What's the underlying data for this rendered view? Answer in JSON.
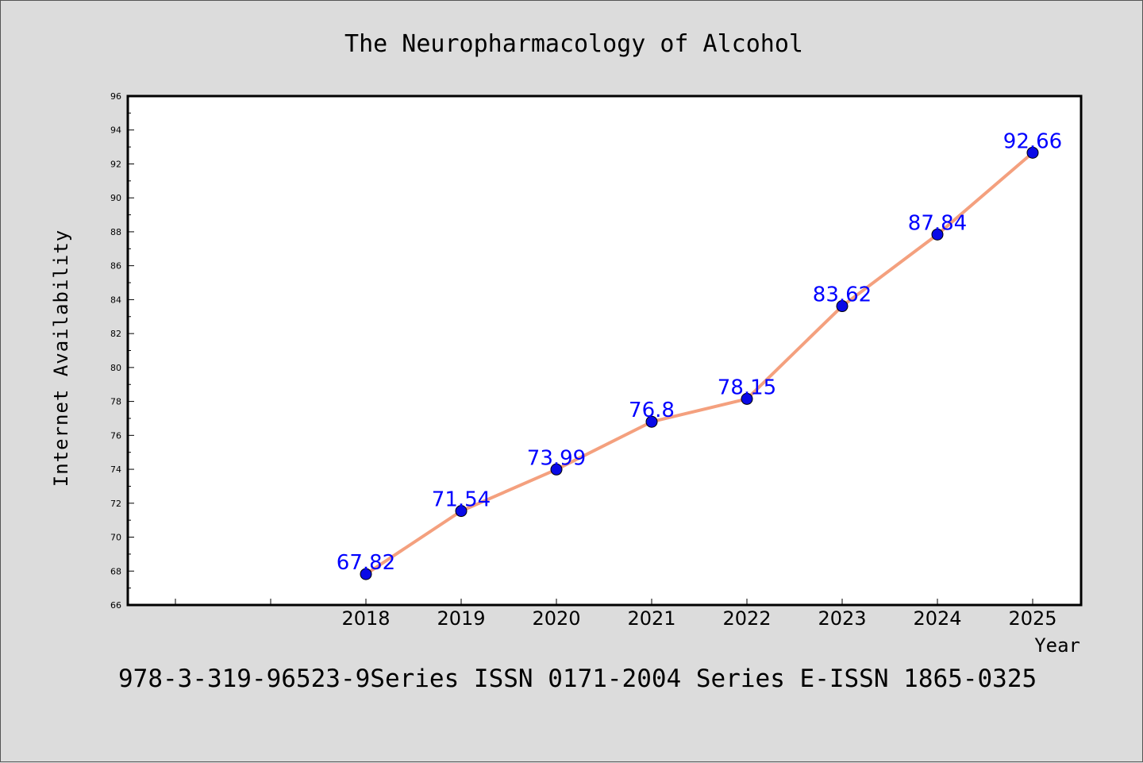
{
  "chart_data": {
    "type": "line",
    "title": "The Neuropharmacology of Alcohol",
    "xlabel": "Year",
    "ylabel": "Internet Availability",
    "categories": [
      "2018",
      "2019",
      "2020",
      "2021",
      "2022",
      "2023",
      "2024",
      "2025"
    ],
    "series": [
      {
        "values": [
          67.82,
          71.54,
          73.99,
          76.8,
          78.15,
          83.62,
          87.84,
          92.66
        ],
        "data_labels": [
          "67.82",
          "71.54",
          "73.99",
          "76.8",
          "78.15",
          "83.62",
          "87.84",
          "92.66"
        ]
      }
    ],
    "ylim": [
      66,
      96
    ],
    "yticks": [
      "66",
      "68",
      "70",
      "72",
      "74",
      "76",
      "78",
      "80",
      "82",
      "84",
      "86",
      "88",
      "90",
      "92",
      "94",
      "96"
    ],
    "grid": false,
    "line_color": "#f4a07e",
    "marker_color": "#0a0ae6",
    "label_color": "#0000ff",
    "background": "#dcdcdc",
    "plot_background": "#ffffff"
  },
  "footer": "978-3-319-96523-9Series ISSN 0171-2004 Series E-ISSN 1865-0325"
}
